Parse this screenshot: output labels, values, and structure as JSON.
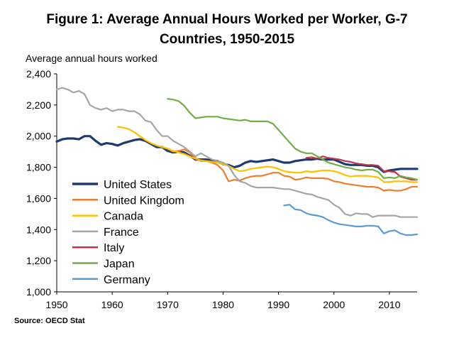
{
  "title": "Figure 1: Average Annual Hours Worked per Worker, G-7 Countries, 1950-2015",
  "title_line1": "Figure 1: Average Annual Hours Worked per Worker, G-7",
  "title_line2": "Countries, 1950-2015",
  "source": "Source: OECD Stat",
  "chart_data": {
    "type": "line",
    "title": "Figure 1: Average Annual Hours Worked per Worker, G-7 Countries, 1950-2015",
    "ylabel": "Average annual hours worked",
    "xlabel": "",
    "xlim": [
      1950,
      2015
    ],
    "ylim": [
      1000,
      2400
    ],
    "x_ticks": [
      1950,
      1960,
      1970,
      1980,
      1990,
      2000,
      2010
    ],
    "y_ticks": [
      1000,
      1200,
      1400,
      1600,
      1800,
      2000,
      2200,
      2400
    ],
    "y_tick_labels": [
      "1,000",
      "1,200",
      "1,400",
      "1,600",
      "1,800",
      "2,000",
      "2,200",
      "2,400"
    ],
    "grid": false,
    "legend_position": "bottom-left",
    "series": [
      {
        "name": "United States",
        "color": "#1f3a73",
        "x": [
          1950,
          1951,
          1952,
          1953,
          1954,
          1955,
          1956,
          1957,
          1958,
          1959,
          1960,
          1961,
          1962,
          1963,
          1964,
          1965,
          1966,
          1967,
          1968,
          1969,
          1970,
          1971,
          1972,
          1973,
          1974,
          1975,
          1976,
          1977,
          1978,
          1979,
          1980,
          1981,
          1982,
          1983,
          1984,
          1985,
          1986,
          1987,
          1988,
          1989,
          1990,
          1991,
          1992,
          1993,
          1994,
          1995,
          1996,
          1997,
          1998,
          1999,
          2000,
          2001,
          2002,
          2003,
          2004,
          2005,
          2006,
          2007,
          2008,
          2009,
          2010,
          2011,
          2012,
          2013,
          2014,
          2015
        ],
        "y": [
          1965,
          1980,
          1985,
          1985,
          1980,
          2000,
          2000,
          1970,
          1945,
          1955,
          1950,
          1940,
          1955,
          1965,
          1975,
          1980,
          1970,
          1950,
          1930,
          1930,
          1905,
          1895,
          1900,
          1895,
          1875,
          1850,
          1850,
          1850,
          1845,
          1840,
          1820,
          1815,
          1800,
          1810,
          1830,
          1840,
          1835,
          1840,
          1845,
          1850,
          1840,
          1830,
          1830,
          1840,
          1845,
          1850,
          1850,
          1855,
          1850,
          1850,
          1850,
          1835,
          1820,
          1815,
          1815,
          1815,
          1810,
          1810,
          1800,
          1770,
          1780,
          1785,
          1790,
          1790,
          1790,
          1790
        ]
      },
      {
        "name": "United Kingdom",
        "color": "#ed7d31",
        "x": [
          1970,
          1971,
          1972,
          1973,
          1974,
          1975,
          1976,
          1977,
          1978,
          1979,
          1980,
          1981,
          1982,
          1983,
          1984,
          1985,
          1986,
          1987,
          1988,
          1989,
          1990,
          1991,
          1992,
          1993,
          1994,
          1995,
          1996,
          1997,
          1998,
          1999,
          2000,
          2001,
          2002,
          2003,
          2004,
          2005,
          2006,
          2007,
          2008,
          2009,
          2010,
          2011,
          2012,
          2013,
          2014,
          2015
        ],
        "y": [
          1920,
          1900,
          1905,
          1915,
          1895,
          1860,
          1840,
          1840,
          1830,
          1815,
          1780,
          1710,
          1720,
          1715,
          1730,
          1740,
          1745,
          1745,
          1755,
          1765,
          1765,
          1745,
          1740,
          1720,
          1725,
          1735,
          1730,
          1730,
          1730,
          1725,
          1710,
          1705,
          1695,
          1690,
          1685,
          1680,
          1675,
          1675,
          1670,
          1650,
          1655,
          1650,
          1650,
          1660,
          1675,
          1675
        ]
      },
      {
        "name": "Canada",
        "color": "#ffc000",
        "x": [
          1961,
          1962,
          1963,
          1964,
          1965,
          1966,
          1967,
          1968,
          1969,
          1970,
          1971,
          1972,
          1973,
          1974,
          1975,
          1976,
          1977,
          1978,
          1979,
          1980,
          1981,
          1982,
          1983,
          1984,
          1985,
          1986,
          1987,
          1988,
          1989,
          1990,
          1991,
          1992,
          1993,
          1994,
          1995,
          1996,
          1997,
          1998,
          1999,
          2000,
          2001,
          2002,
          2003,
          2004,
          2005,
          2006,
          2007,
          2008,
          2009,
          2010,
          2011,
          2012,
          2013,
          2014,
          2015
        ],
        "y": [
          2060,
          2055,
          2045,
          2025,
          2000,
          1975,
          1955,
          1940,
          1930,
          1920,
          1905,
          1895,
          1885,
          1870,
          1855,
          1845,
          1840,
          1835,
          1830,
          1820,
          1810,
          1790,
          1775,
          1780,
          1790,
          1795,
          1800,
          1805,
          1800,
          1790,
          1775,
          1770,
          1765,
          1765,
          1775,
          1770,
          1775,
          1780,
          1780,
          1775,
          1765,
          1750,
          1740,
          1745,
          1745,
          1745,
          1740,
          1735,
          1705,
          1705,
          1710,
          1710,
          1710,
          1705,
          1705
        ]
      },
      {
        "name": "France",
        "color": "#a5a5a5",
        "x": [
          1950,
          1951,
          1952,
          1953,
          1954,
          1955,
          1956,
          1957,
          1958,
          1959,
          1960,
          1961,
          1962,
          1963,
          1964,
          1965,
          1966,
          1967,
          1968,
          1969,
          1970,
          1971,
          1972,
          1973,
          1974,
          1975,
          1976,
          1977,
          1978,
          1979,
          1980,
          1981,
          1982,
          1983,
          1984,
          1985,
          1986,
          1987,
          1988,
          1989,
          1990,
          1991,
          1992,
          1993,
          1994,
          1995,
          1996,
          1997,
          1998,
          1999,
          2000,
          2001,
          2002,
          2003,
          2004,
          2005,
          2006,
          2007,
          2008,
          2009,
          2010,
          2011,
          2012,
          2013,
          2014,
          2015
        ],
        "y": [
          2300,
          2310,
          2300,
          2280,
          2290,
          2270,
          2200,
          2180,
          2170,
          2180,
          2160,
          2170,
          2170,
          2160,
          2160,
          2140,
          2100,
          2090,
          2040,
          2000,
          2000,
          1970,
          1950,
          1930,
          1900,
          1870,
          1890,
          1870,
          1850,
          1840,
          1830,
          1810,
          1750,
          1710,
          1700,
          1680,
          1670,
          1670,
          1670,
          1670,
          1665,
          1660,
          1660,
          1650,
          1640,
          1630,
          1625,
          1610,
          1600,
          1590,
          1560,
          1540,
          1500,
          1490,
          1505,
          1500,
          1500,
          1480,
          1490,
          1490,
          1490,
          1490,
          1480,
          1480,
          1480,
          1480
        ]
      },
      {
        "name": "Italy",
        "color": "#c0334a",
        "x": [
          1995,
          1996,
          1997,
          1998,
          1999,
          2000,
          2001,
          2002,
          2003,
          2004,
          2005,
          2006,
          2007,
          2008,
          2009,
          2010,
          2011,
          2012,
          2013,
          2014,
          2015
        ],
        "y": [
          1860,
          1865,
          1855,
          1870,
          1860,
          1855,
          1850,
          1840,
          1835,
          1825,
          1820,
          1815,
          1815,
          1810,
          1775,
          1775,
          1770,
          1740,
          1730,
          1720,
          1720
        ]
      },
      {
        "name": "Japan",
        "color": "#70ad47",
        "x": [
          1970,
          1971,
          1972,
          1973,
          1974,
          1975,
          1976,
          1977,
          1978,
          1979,
          1980,
          1981,
          1982,
          1983,
          1984,
          1985,
          1986,
          1987,
          1988,
          1989,
          1990,
          1991,
          1992,
          1993,
          1994,
          1995,
          1996,
          1997,
          1998,
          1999,
          2000,
          2001,
          2002,
          2003,
          2004,
          2005,
          2006,
          2007,
          2008,
          2009,
          2010,
          2011,
          2012,
          2013,
          2014,
          2015
        ],
        "y": [
          2240,
          2235,
          2225,
          2195,
          2150,
          2115,
          2120,
          2125,
          2125,
          2125,
          2115,
          2110,
          2105,
          2100,
          2105,
          2095,
          2095,
          2095,
          2095,
          2080,
          2040,
          2000,
          1960,
          1920,
          1900,
          1890,
          1890,
          1870,
          1850,
          1830,
          1820,
          1810,
          1800,
          1795,
          1785,
          1780,
          1785,
          1785,
          1770,
          1730,
          1735,
          1730,
          1745,
          1735,
          1730,
          1720
        ]
      },
      {
        "name": "Germany",
        "color": "#5b9bd5",
        "x": [
          1991,
          1992,
          1993,
          1994,
          1995,
          1996,
          1997,
          1998,
          1999,
          2000,
          2001,
          2002,
          2003,
          2004,
          2005,
          2006,
          2007,
          2008,
          2009,
          2010,
          2011,
          2012,
          2013,
          2014,
          2015
        ],
        "y": [
          1555,
          1560,
          1530,
          1525,
          1505,
          1495,
          1490,
          1480,
          1460,
          1445,
          1435,
          1430,
          1425,
          1420,
          1420,
          1425,
          1425,
          1420,
          1375,
          1390,
          1395,
          1375,
          1365,
          1365,
          1370
        ]
      }
    ]
  }
}
